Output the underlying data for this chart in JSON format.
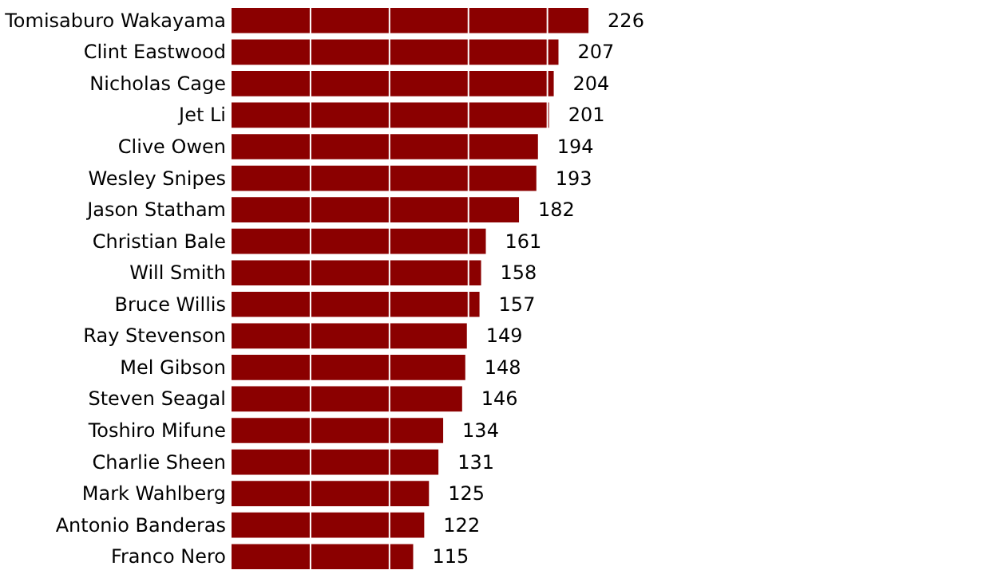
{
  "chart_data": {
    "type": "bar",
    "orientation": "horizontal",
    "categories": [
      "Tomisaburo Wakayama",
      "Clint Eastwood",
      "Nicholas Cage",
      "Jet Li",
      "Clive Owen",
      "Wesley Snipes",
      "Jason Statham",
      "Christian Bale",
      "Will Smith",
      "Bruce Willis",
      "Ray Stevenson",
      "Mel Gibson",
      "Steven Seagal",
      "Toshiro Mifune",
      "Charlie Sheen",
      "Mark Wahlberg",
      "Antonio Banderas",
      "Franco Nero"
    ],
    "values": [
      226,
      207,
      204,
      201,
      194,
      193,
      182,
      161,
      158,
      157,
      149,
      148,
      146,
      134,
      131,
      125,
      122,
      115
    ],
    "color": "#8b0000",
    "xlim": [
      0,
      460
    ],
    "xticks": [
      {
        "value": 50,
        "label": null
      },
      {
        "value": 100,
        "label": null
      },
      {
        "value": 150,
        "label": null
      },
      {
        "value": 200,
        "label": null
      }
    ],
    "grid": "x",
    "tick_labels": "y",
    "data_labels": true
  }
}
